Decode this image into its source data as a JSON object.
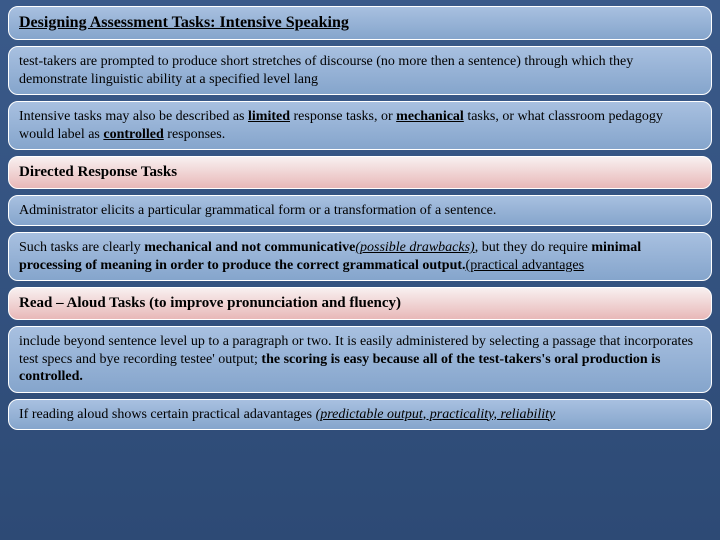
{
  "blocks": {
    "title": "Designing Assessment Tasks: Intensive Speaking",
    "b1": "test-takers are prompted to produce short stretches of discourse (no more then a sentence) through which they demonstrate linguistic ability at a specified level lang",
    "b2_pre": "Intensive tasks may also be described as ",
    "b2_limited": "limited",
    "b2_mid1": " response tasks, or ",
    "b2_mechanical": "mechanical",
    "b2_mid2": " tasks, or what classroom pedagogy would label as ",
    "b2_controlled": "controlled",
    "b2_end": " responses.",
    "h1": "Directed Response Tasks",
    "b3": "Administrator elicits a particular grammatical form or a transformation of a sentence.",
    "b4_pre": "Such tasks are clearly ",
    "b4_bold1": "mechanical and not communicative",
    "b4_paren1": "(possible drawbacks)",
    "b4_mid": ", but they do require ",
    "b4_bold2": "minimal processing of meaning in order to produce the correct grammatical output.",
    "b4_paren2": "(practical advantages",
    "h2": "Read – Aloud Tasks (to improve pronunciation and fluency)",
    "b5_pre": "include beyond sentence level up to a paragraph or two. It  is easily administered by selecting a passage that incorporates test specs and bye recording testee' output; ",
    "b5_bold": "the scoring is easy because all of the test-takers's oral production is controlled.",
    "b6_pre": "If reading aloud shows certain practical adavantages ",
    "b6_paren": "(predictable output, practicality, reliability"
  },
  "colors": {
    "bg_top": "#3a5a8a",
    "bg_bottom": "#2d4a75",
    "blue_top": "#a8c0e0",
    "blue_bottom": "#85a5cc",
    "red_top": "#f8f0f0",
    "red_bottom": "#e8b8b8",
    "border": "#ffffff",
    "text": "#000000"
  }
}
